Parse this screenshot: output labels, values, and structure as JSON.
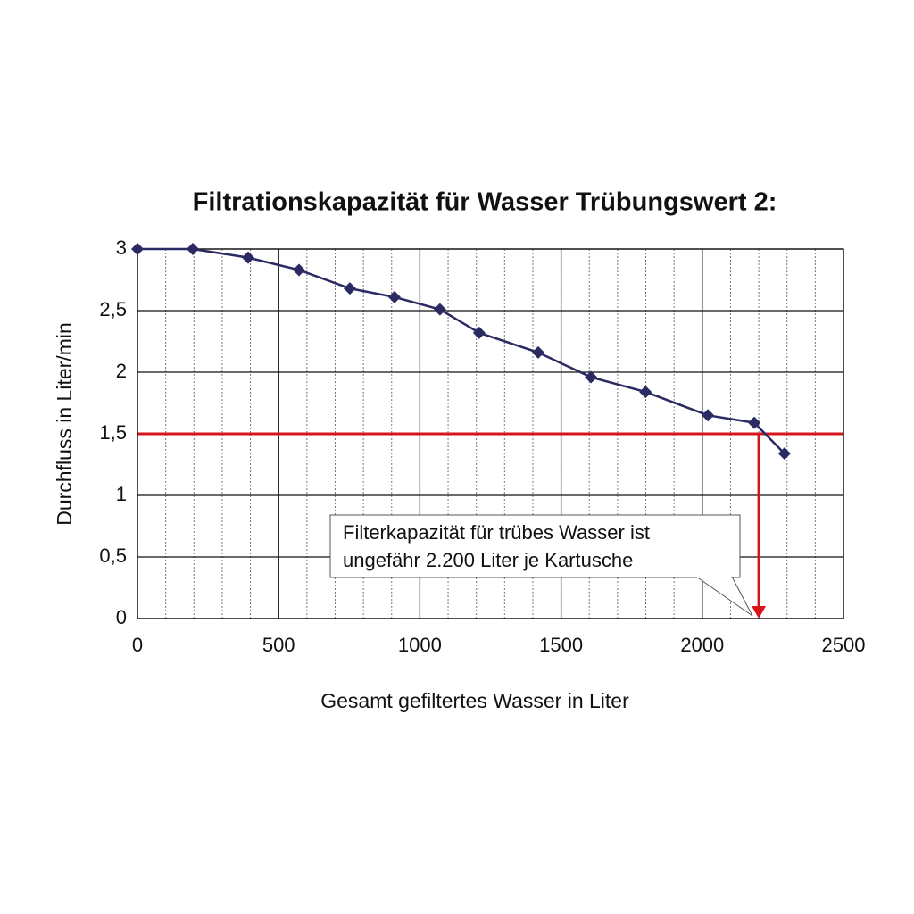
{
  "chart_data": {
    "type": "line",
    "title": "Filtrationskapazität für Wasser Trübungswert 2:",
    "x_label": "Gesamt gefiltertes Wasser in Liter",
    "y_label": "Durchfluss in Liter/min",
    "x": [
      0,
      196,
      392,
      572,
      752,
      910,
      1071,
      1210,
      1419,
      1606,
      1799,
      2020,
      2184,
      2291
    ],
    "series": [
      {
        "color": "#2b2a63",
        "values": [
          3,
          3,
          2.93,
          2.83,
          2.68,
          2.61,
          2.51,
          2.32,
          2.16,
          1.96,
          1.84,
          1.65,
          1.59,
          1.34
        ]
      }
    ],
    "xlim": [
      0,
      2500
    ],
    "xticks": [
      0,
      500,
      1000,
      1500,
      2000,
      2500
    ],
    "ylim": [
      0,
      3
    ],
    "yticks": [
      0,
      {
        "value": 0.5,
        "label": "0,5"
      },
      1,
      {
        "value": 1.5,
        "label": "1,5"
      },
      2,
      {
        "value": 2.5,
        "label": "2,5"
      },
      3
    ],
    "grid": true,
    "x_minor_grid_step": 100,
    "threshold": {
      "y": 1.5,
      "x": 2200,
      "color": "#d7141e"
    },
    "annotation": [
      "Filterkapazität für trübes Wasser ist",
      "ungefähr 2.200 Liter je Kartusche"
    ]
  }
}
